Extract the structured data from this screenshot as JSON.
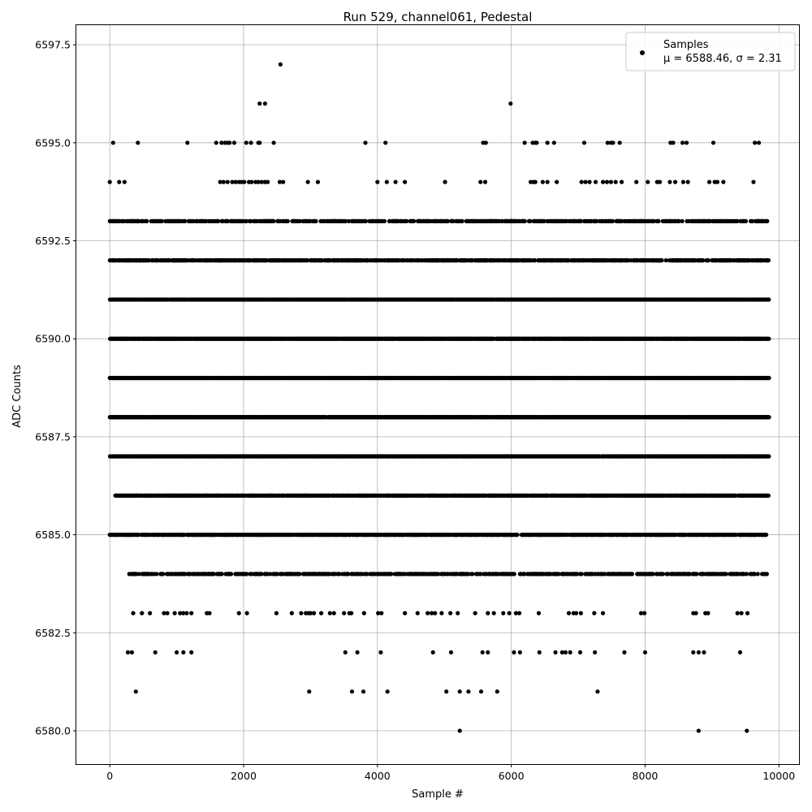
{
  "chart_data": {
    "type": "scatter",
    "title": "Run 529, channel061, Pedestal",
    "xlabel": "Sample #",
    "ylabel": "ADC Counts",
    "xlim": [
      -500,
      10300
    ],
    "ylim": [
      6579.15,
      6598.0
    ],
    "xticks": [
      0,
      2000,
      4000,
      6000,
      8000,
      10000
    ],
    "xtick_labels": [
      "0",
      "2000",
      "4000",
      "6000",
      "8000",
      "10000"
    ],
    "yticks": [
      6580.0,
      6582.5,
      6585.0,
      6587.5,
      6590.0,
      6592.5,
      6595.0,
      6597.5
    ],
    "ytick_labels": [
      "6580.0",
      "6582.5",
      "6585.0",
      "6587.5",
      "6590.0",
      "6592.5",
      "6595.0",
      "6597.5"
    ],
    "grid": true,
    "legend": {
      "position": "top-right",
      "entries": [
        "Samples"
      ],
      "stats": "μ = 6588.46, σ = 2.31"
    },
    "series": [
      {
        "name": "Samples",
        "color": "#000000",
        "x_range": [
          0,
          9850
        ],
        "levels": [
          {
            "y": 6597,
            "x": [
              2550
            ]
          },
          {
            "y": 6596,
            "x": [
              2240,
              2320,
              5990
            ]
          },
          {
            "y": 6595,
            "x": [
              50,
              420,
              1160,
              1590,
              1670,
              1720,
              1760,
              1790,
              1860,
              2040,
              2110,
              2220,
              2240,
              2450,
              3820,
              4120,
              5580,
              5620,
              6200,
              6320,
              6360,
              6380,
              6540,
              6640,
              7090,
              7440,
              7490,
              7520,
              7620,
              8380,
              8420,
              8560,
              8620,
              9020,
              9640,
              9700
            ]
          },
          {
            "y": 6594,
            "x": [
              0,
              140,
              220,
              1650,
              1700,
              1760,
              1830,
              1880,
              1930,
              1970,
              2010,
              2080,
              2120,
              2180,
              2220,
              2270,
              2320,
              2360,
              2540,
              2590,
              2960,
              3110,
              4000,
              4140,
              4270,
              4410,
              5010,
              5540,
              5610,
              6290,
              6330,
              6360,
              6470,
              6540,
              6680,
              7050,
              7110,
              7170,
              7260,
              7370,
              7430,
              7490,
              7560,
              7650,
              7870,
              8040,
              8180,
              8220,
              8370,
              8450,
              8570,
              8640,
              8960,
              9040,
              9080,
              9170,
              9620
            ]
          },
          {
            "y": 6593,
            "x_from": 0,
            "x_to": 9830,
            "density": 0.45,
            "seed": 11
          },
          {
            "y": 6592,
            "x_from": 0,
            "x_to": 9840,
            "density": 0.62,
            "seed": 23
          },
          {
            "y": 6591,
            "x_from": 0,
            "x_to": 9850,
            "density": 0.86,
            "seed": 37
          },
          {
            "y": 6590,
            "x_from": 0,
            "x_to": 9850,
            "density": 0.97,
            "seed": 41
          },
          {
            "y": 6589,
            "x_from": 0,
            "x_to": 9850,
            "density": 0.98,
            "seed": 53
          },
          {
            "y": 6588,
            "x_from": 0,
            "x_to": 9850,
            "density": 0.97,
            "seed": 67
          },
          {
            "y": 6587,
            "x_from": 0,
            "x_to": 9850,
            "density": 0.9,
            "seed": 71
          },
          {
            "y": 6586,
            "x_from": 80,
            "x_to": 9840,
            "density": 0.8,
            "seed": 83
          },
          {
            "y": 6585,
            "x_from": 0,
            "x_to": 9830,
            "density": 0.7,
            "seed": 97
          },
          {
            "y": 6584,
            "x_from": 290,
            "x_to": 9820,
            "density": 0.4,
            "seed": 101
          },
          {
            "y": 6583,
            "x": [
              350,
              480,
              600,
              810,
              860,
              970,
              1050,
              1100,
              1150,
              1220,
              1450,
              1490,
              1930,
              2050,
              2490,
              2720,
              2860,
              2930,
              2970,
              3000,
              3050,
              3160,
              3290,
              3350,
              3500,
              3580,
              3610,
              3800,
              4010,
              4060,
              4410,
              4600,
              4750,
              4810,
              4860,
              4960,
              5090,
              5200,
              5460,
              5650,
              5740,
              5880,
              5970,
              6070,
              6120,
              6410,
              6860,
              6930,
              6970,
              7040,
              7240,
              7370,
              7940,
              7990,
              8720,
              8760,
              8900,
              8940,
              9380,
              9440,
              9530
            ]
          },
          {
            "y": 6582,
            "x": [
              270,
              330,
              680,
              1000,
              1100,
              1220,
              3520,
              3700,
              4050,
              4830,
              5100,
              5570,
              5650,
              6040,
              6130,
              6420,
              6660,
              6760,
              6810,
              6880,
              7030,
              7250,
              7690,
              8000,
              8720,
              8800,
              8880,
              9420
            ]
          },
          {
            "y": 6581,
            "x": [
              390,
              2980,
              3620,
              3790,
              4150,
              5030,
              5230,
              5360,
              5550,
              5790,
              7290
            ]
          },
          {
            "y": 6580,
            "x": [
              5230,
              8800,
              9520
            ]
          }
        ]
      }
    ]
  }
}
